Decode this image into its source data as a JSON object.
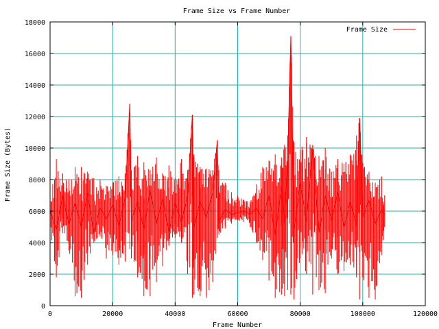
{
  "chart_data": {
    "type": "line",
    "title": "Frame Size vs Frame Number",
    "xlabel": "Frame Number",
    "ylabel": "Frame Size (Bytes)",
    "xlim": [
      0,
      120000
    ],
    "ylim": [
      0,
      18000
    ],
    "xticks": [
      0,
      20000,
      40000,
      60000,
      80000,
      100000,
      120000
    ],
    "yticks": [
      0,
      2000,
      4000,
      6000,
      8000,
      10000,
      12000,
      14000,
      16000,
      18000
    ],
    "grid": true,
    "legend_position": "top-right",
    "series": [
      {
        "name": "Frame Size",
        "color": "#ff0000",
        "x": [
          0,
          2000,
          4000,
          6000,
          8000,
          10000,
          12000,
          14000,
          16000,
          18000,
          20000,
          22000,
          24000,
          25500,
          26000,
          28000,
          30000,
          32000,
          34000,
          36000,
          38000,
          40000,
          42000,
          44000,
          45500,
          46000,
          48000,
          50000,
          52000,
          53500,
          54000,
          56000,
          58000,
          60000,
          62000,
          64000,
          66000,
          68000,
          70000,
          72000,
          74000,
          75000,
          76000,
          77000,
          78000,
          80000,
          82000,
          84000,
          86000,
          88000,
          90000,
          92000,
          94000,
          96000,
          98000,
          99000,
          100000,
          102000,
          104000,
          106000,
          107000
        ],
        "y": [
          6000,
          4800,
          7000,
          5200,
          6500,
          5000,
          7200,
          4600,
          6200,
          5500,
          6400,
          5100,
          6800,
          12800,
          5400,
          6600,
          4900,
          7300,
          5200,
          6800,
          4700,
          6500,
          5300,
          7000,
          12100,
          5000,
          6600,
          5600,
          7200,
          10500,
          5400,
          6100,
          5800,
          5900,
          6000,
          5800,
          6200,
          5500,
          7000,
          4500,
          7600,
          5200,
          9300,
          17100,
          4800,
          7800,
          5300,
          10000,
          4600,
          7000,
          5400,
          7200,
          5000,
          6600,
          5100,
          11900,
          5600,
          6700,
          5200,
          6100,
          5800
        ],
        "max_values": [
          7200,
          9300,
          8400,
          8000,
          8800,
          8800,
          8500,
          8100,
          8000,
          7600,
          7800,
          8200,
          8400,
          12800,
          8600,
          9500,
          9100,
          8600,
          9400,
          8400,
          8900,
          8100,
          9300,
          8600,
          12100,
          9600,
          8800,
          8700,
          8600,
          10500,
          8600,
          7800,
          7200,
          7000,
          6700,
          6600,
          7700,
          8800,
          9200,
          9600,
          9400,
          10200,
          10800,
          17100,
          10400,
          9900,
          10700,
          10200,
          9500,
          10000,
          8500,
          9300,
          9000,
          9600,
          10800,
          11900,
          9100,
          8500,
          7800,
          8200,
          7000
        ],
        "min_values": [
          4800,
          1800,
          4600,
          3500,
          600,
          500,
          2600,
          4000,
          4400,
          3000,
          3200,
          2600,
          2800,
          3600,
          3000,
          1800,
          600,
          600,
          1500,
          2500,
          3800,
          4300,
          4000,
          2000,
          500,
          700,
          600,
          500,
          1500,
          4300,
          4500,
          4900,
          5200,
          5400,
          5300,
          5000,
          4000,
          2900,
          1600,
          500,
          700,
          600,
          1000,
          700,
          400,
          3000,
          2000,
          700,
          1000,
          800,
          3000,
          2000,
          2200,
          2600,
          1800,
          400,
          1800,
          500,
          400,
          3200,
          5000
        ]
      }
    ]
  }
}
